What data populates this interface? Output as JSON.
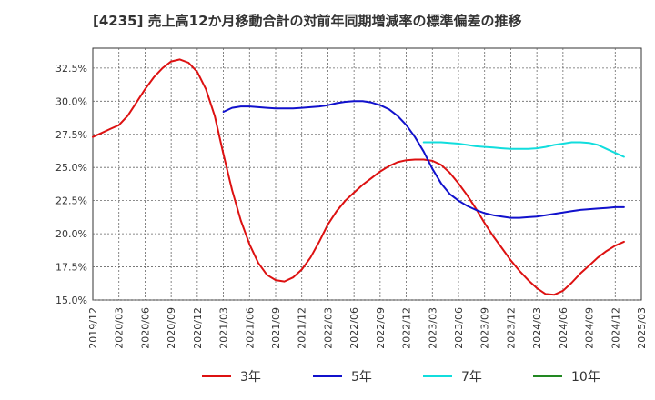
{
  "chart_data": {
    "type": "line",
    "title": "[4235]  売上高12か月移動合計の対前年同期増減率の標準偏差の推移",
    "xlabel": "",
    "ylabel": "",
    "ylim": [
      15.0,
      34.0
    ],
    "y_ticks": [
      "15.0%",
      "17.5%",
      "20.0%",
      "22.5%",
      "25.0%",
      "27.5%",
      "30.0%",
      "32.5%"
    ],
    "x_ticks": [
      "2019/12",
      "2020/03",
      "2020/06",
      "2020/09",
      "2020/12",
      "2021/03",
      "2021/06",
      "2021/09",
      "2021/12",
      "2022/03",
      "2022/06",
      "2022/09",
      "2022/12",
      "2023/03",
      "2023/06",
      "2023/09",
      "2023/12",
      "2024/03",
      "2024/06",
      "2024/09",
      "2024/12",
      "2025/03"
    ],
    "grid": true,
    "legend_position": "bottom",
    "series": [
      {
        "name": "3年",
        "color": "#dd1111",
        "points": [
          [
            "2019/12",
            27.3
          ],
          [
            "2020/01",
            27.6
          ],
          [
            "2020/02",
            27.9
          ],
          [
            "2020/03",
            28.2
          ],
          [
            "2020/04",
            28.9
          ],
          [
            "2020/05",
            29.9
          ],
          [
            "2020/06",
            30.9
          ],
          [
            "2020/07",
            31.8
          ],
          [
            "2020/08",
            32.5
          ],
          [
            "2020/09",
            33.0
          ],
          [
            "2020/10",
            33.15
          ],
          [
            "2020/11",
            32.9
          ],
          [
            "2020/12",
            32.2
          ],
          [
            "2021/01",
            30.9
          ],
          [
            "2021/02",
            28.9
          ],
          [
            "2021/03",
            26.0
          ],
          [
            "2021/04",
            23.3
          ],
          [
            "2021/05",
            21.0
          ],
          [
            "2021/06",
            19.2
          ],
          [
            "2021/07",
            17.8
          ],
          [
            "2021/08",
            16.9
          ],
          [
            "2021/09",
            16.5
          ],
          [
            "2021/10",
            16.4
          ],
          [
            "2021/11",
            16.7
          ],
          [
            "2021/12",
            17.3
          ],
          [
            "2022/01",
            18.2
          ],
          [
            "2022/02",
            19.4
          ],
          [
            "2022/03",
            20.7
          ],
          [
            "2022/04",
            21.7
          ],
          [
            "2022/05",
            22.5
          ],
          [
            "2022/06",
            23.1
          ],
          [
            "2022/07",
            23.7
          ],
          [
            "2022/08",
            24.2
          ],
          [
            "2022/09",
            24.7
          ],
          [
            "2022/10",
            25.1
          ],
          [
            "2022/11",
            25.4
          ],
          [
            "2022/12",
            25.55
          ],
          [
            "2023/01",
            25.6
          ],
          [
            "2023/02",
            25.6
          ],
          [
            "2023/03",
            25.5
          ],
          [
            "2023/04",
            25.2
          ],
          [
            "2023/05",
            24.6
          ],
          [
            "2023/06",
            23.8
          ],
          [
            "2023/07",
            22.9
          ],
          [
            "2023/08",
            21.9
          ],
          [
            "2023/09",
            20.8
          ],
          [
            "2023/10",
            19.8
          ],
          [
            "2023/11",
            18.9
          ],
          [
            "2023/12",
            18.0
          ],
          [
            "2024/01",
            17.2
          ],
          [
            "2024/02",
            16.5
          ],
          [
            "2024/03",
            15.9
          ],
          [
            "2024/04",
            15.45
          ],
          [
            "2024/05",
            15.4
          ],
          [
            "2024/06",
            15.7
          ],
          [
            "2024/07",
            16.3
          ],
          [
            "2024/08",
            17.0
          ],
          [
            "2024/09",
            17.6
          ],
          [
            "2024/10",
            18.2
          ],
          [
            "2024/11",
            18.7
          ],
          [
            "2024/12",
            19.1
          ],
          [
            "2025/01",
            19.4
          ]
        ]
      },
      {
        "name": "5年",
        "color": "#1111cc",
        "points": [
          [
            "2021/03",
            29.2
          ],
          [
            "2021/04",
            29.5
          ],
          [
            "2021/05",
            29.6
          ],
          [
            "2021/06",
            29.6
          ],
          [
            "2021/07",
            29.55
          ],
          [
            "2021/08",
            29.5
          ],
          [
            "2021/09",
            29.45
          ],
          [
            "2021/10",
            29.45
          ],
          [
            "2021/11",
            29.45
          ],
          [
            "2021/12",
            29.5
          ],
          [
            "2022/01",
            29.55
          ],
          [
            "2022/02",
            29.6
          ],
          [
            "2022/03",
            29.7
          ],
          [
            "2022/04",
            29.85
          ],
          [
            "2022/05",
            29.95
          ],
          [
            "2022/06",
            30.0
          ],
          [
            "2022/07",
            30.0
          ],
          [
            "2022/08",
            29.9
          ],
          [
            "2022/09",
            29.7
          ],
          [
            "2022/10",
            29.4
          ],
          [
            "2022/11",
            28.9
          ],
          [
            "2022/12",
            28.2
          ],
          [
            "2023/01",
            27.3
          ],
          [
            "2023/02",
            26.2
          ],
          [
            "2023/03",
            24.9
          ],
          [
            "2023/04",
            23.8
          ],
          [
            "2023/05",
            23.0
          ],
          [
            "2023/06",
            22.5
          ],
          [
            "2023/07",
            22.1
          ],
          [
            "2023/08",
            21.8
          ],
          [
            "2023/09",
            21.55
          ],
          [
            "2023/10",
            21.4
          ],
          [
            "2023/11",
            21.3
          ],
          [
            "2023/12",
            21.2
          ],
          [
            "2024/01",
            21.2
          ],
          [
            "2024/02",
            21.25
          ],
          [
            "2024/03",
            21.3
          ],
          [
            "2024/04",
            21.4
          ],
          [
            "2024/05",
            21.5
          ],
          [
            "2024/06",
            21.6
          ],
          [
            "2024/07",
            21.7
          ],
          [
            "2024/08",
            21.8
          ],
          [
            "2024/09",
            21.85
          ],
          [
            "2024/10",
            21.9
          ],
          [
            "2024/11",
            21.95
          ],
          [
            "2024/12",
            22.0
          ],
          [
            "2025/01",
            22.0
          ]
        ]
      },
      {
        "name": "7年",
        "color": "#11dddd",
        "points": [
          [
            "2023/02",
            26.9
          ],
          [
            "2023/03",
            26.9
          ],
          [
            "2023/04",
            26.9
          ],
          [
            "2023/05",
            26.85
          ],
          [
            "2023/06",
            26.8
          ],
          [
            "2023/07",
            26.7
          ],
          [
            "2023/08",
            26.6
          ],
          [
            "2023/09",
            26.55
          ],
          [
            "2023/10",
            26.5
          ],
          [
            "2023/11",
            26.45
          ],
          [
            "2023/12",
            26.4
          ],
          [
            "2024/01",
            26.4
          ],
          [
            "2024/02",
            26.4
          ],
          [
            "2024/03",
            26.45
          ],
          [
            "2024/04",
            26.55
          ],
          [
            "2024/05",
            26.7
          ],
          [
            "2024/06",
            26.8
          ],
          [
            "2024/07",
            26.9
          ],
          [
            "2024/08",
            26.9
          ],
          [
            "2024/09",
            26.85
          ],
          [
            "2024/10",
            26.7
          ],
          [
            "2024/11",
            26.4
          ],
          [
            "2024/12",
            26.1
          ],
          [
            "2025/01",
            25.8
          ]
        ]
      },
      {
        "name": "10年",
        "color": "#228822",
        "points": []
      }
    ]
  }
}
